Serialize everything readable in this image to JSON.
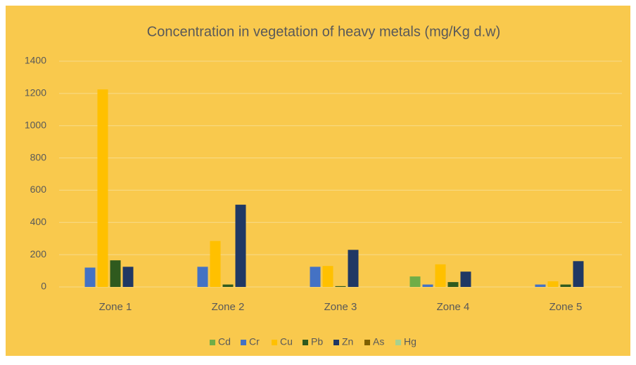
{
  "chart_data": {
    "type": "bar",
    "title": "Concentration in vegetation of heavy metals (mg/Kg d.w)",
    "categories": [
      "Zone 1",
      "Zone 2",
      "Zone 3",
      "Zone 4",
      "Zone 5"
    ],
    "series": [
      {
        "name": "Cd",
        "color": "#70ad47",
        "values": [
          0,
          0,
          0,
          65,
          0
        ]
      },
      {
        "name": "Cr",
        "color": "#4472c4",
        "values": [
          120,
          125,
          125,
          15,
          15
        ]
      },
      {
        "name": "Cu",
        "color": "#ffc000",
        "values": [
          1225,
          285,
          130,
          140,
          35
        ]
      },
      {
        "name": "Pb",
        "color": "#2f5a1e",
        "values": [
          165,
          15,
          5,
          30,
          15
        ]
      },
      {
        "name": "Zn",
        "color": "#203864",
        "values": [
          125,
          510,
          230,
          95,
          160
        ]
      },
      {
        "name": "As",
        "color": "#7f6000",
        "values": [
          0,
          0,
          0,
          0,
          0
        ]
      },
      {
        "name": "Hg",
        "color": "#a9d18e",
        "values": [
          0,
          0,
          0,
          0,
          0
        ]
      }
    ],
    "ylim": [
      0,
      1400
    ],
    "yticks": [
      0,
      200,
      400,
      600,
      800,
      1000,
      1200,
      1400
    ],
    "grid": true,
    "legend": "bottom"
  }
}
